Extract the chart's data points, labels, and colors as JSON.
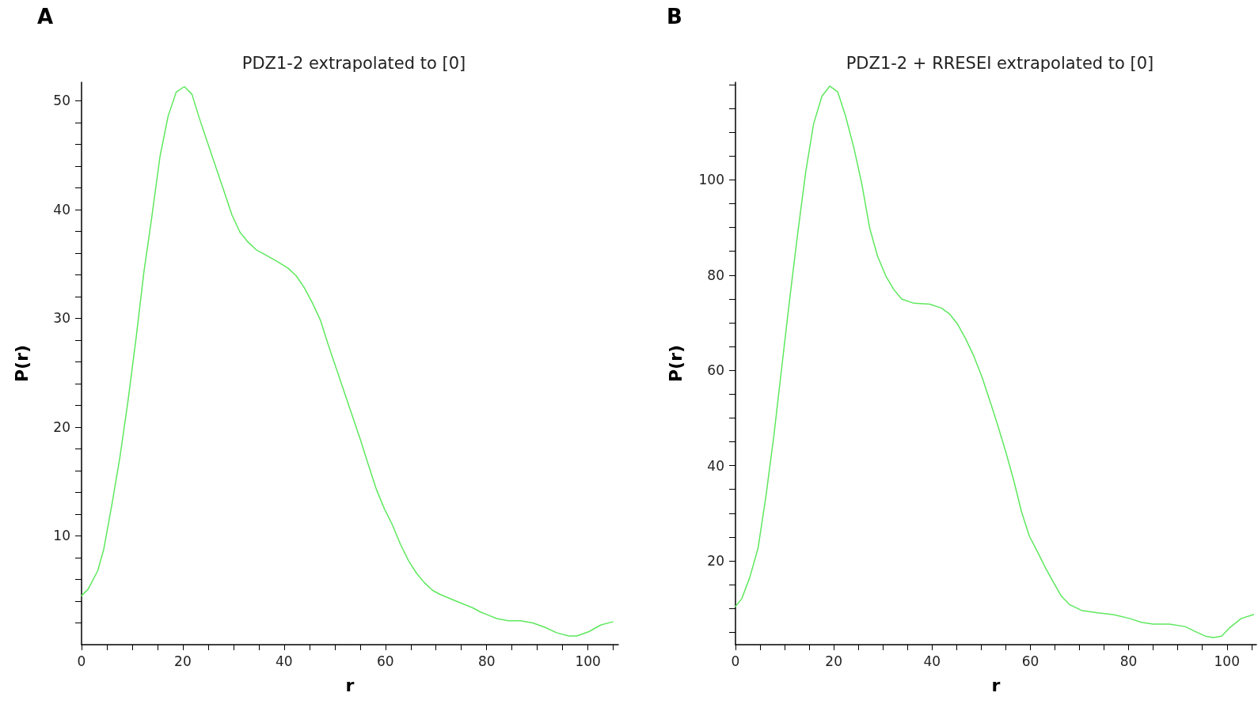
{
  "chart_data": [
    {
      "type": "line",
      "title": "PDZ1-2 extrapolated to [0]",
      "xlabel": "r",
      "ylabel": "P(r)",
      "annotations": [
        "A"
      ],
      "marker": "none",
      "line_style": "solid",
      "xlim": [
        0,
        106
      ],
      "ylim": [
        0,
        51.7
      ],
      "xticks": [
        0,
        {
          "value": 5,
          "label": null
        },
        {
          "value": 10,
          "label": null
        },
        {
          "value": 15,
          "label": null
        },
        20,
        {
          "value": 25,
          "label": null
        },
        {
          "value": 30,
          "label": null
        },
        {
          "value": 35,
          "label": null
        },
        40,
        {
          "value": 45,
          "label": null
        },
        {
          "value": 50,
          "label": null
        },
        {
          "value": 55,
          "label": null
        },
        60,
        {
          "value": 65,
          "label": null
        },
        {
          "value": 70,
          "label": null
        },
        {
          "value": 75,
          "label": null
        },
        80,
        {
          "value": 85,
          "label": null
        },
        {
          "value": 90,
          "label": null
        },
        {
          "value": 95,
          "label": null
        },
        100,
        {
          "value": 105,
          "label": null
        }
      ],
      "yticks": [
        {
          "value": 2,
          "label": null
        },
        {
          "value": 4,
          "label": null
        },
        {
          "value": 6,
          "label": null
        },
        {
          "value": 8,
          "label": null
        },
        10,
        {
          "value": 12,
          "label": null
        },
        {
          "value": 14,
          "label": null
        },
        {
          "value": 16,
          "label": null
        },
        {
          "value": 18,
          "label": null
        },
        20,
        {
          "value": 22,
          "label": null
        },
        {
          "value": 24,
          "label": null
        },
        {
          "value": 26,
          "label": null
        },
        {
          "value": 28,
          "label": null
        },
        30,
        {
          "value": 32,
          "label": null
        },
        {
          "value": 34,
          "label": null
        },
        {
          "value": 36,
          "label": null
        },
        {
          "value": 38,
          "label": null
        },
        40,
        {
          "value": 42,
          "label": null
        },
        {
          "value": 44,
          "label": null
        },
        {
          "value": 46,
          "label": null
        },
        {
          "value": 48,
          "label": null
        },
        50
      ],
      "x": [
        0,
        1.3,
        3.2,
        4.4,
        6,
        7.6,
        9.2,
        10.8,
        12.3,
        13.9,
        15.5,
        17.1,
        18.7,
        20.3,
        21.8,
        23.4,
        25,
        26.6,
        28.2,
        29.7,
        31.3,
        32.9,
        34.5,
        36.1,
        38.4,
        40.8,
        42.4,
        44,
        45.6,
        47.2,
        48.7,
        50.3,
        51.9,
        53.5,
        55.1,
        56.6,
        58.2,
        59.8,
        61.4,
        63,
        64.6,
        66.1,
        67.7,
        69.3,
        70.9,
        74,
        77.2,
        78.8,
        80.4,
        82,
        84.3,
        86.7,
        89.1,
        91.5,
        93.8,
        96.2,
        97.8,
        100.2,
        102.5,
        104.9
      ],
      "series": [
        {
          "color": "#5ee85e",
          "values": [
            4.5,
            5.1,
            6.8,
            8.8,
            12.9,
            17.3,
            22.5,
            28.3,
            34.2,
            39.4,
            44.9,
            48.6,
            50.8,
            51.3,
            50.6,
            48.2,
            46,
            43.8,
            41.6,
            39.5,
            37.9,
            37,
            36.3,
            35.9,
            35.3,
            34.6,
            33.9,
            32.8,
            31.4,
            29.8,
            27.6,
            25.4,
            23.2,
            21,
            18.8,
            16.6,
            14.3,
            12.5,
            11,
            9.2,
            7.7,
            6.6,
            5.7,
            5,
            4.6,
            4,
            3.4,
            3,
            2.7,
            2.4,
            2.2,
            2.2,
            2,
            1.6,
            1.1,
            0.8,
            0.8,
            1.2,
            1.8,
            2.1
          ]
        }
      ]
    },
    {
      "type": "line",
      "title": "PDZ1-2 + RRESEI extrapolated to [0]",
      "xlabel": "r",
      "ylabel": "P(r)",
      "annotations": [
        "B"
      ],
      "marker": "none",
      "line_style": "solid",
      "xlim": [
        0,
        106
      ],
      "ylim": [
        2.4,
        120.5
      ],
      "xticks": [
        0,
        {
          "value": 5,
          "label": null
        },
        {
          "value": 10,
          "label": null
        },
        {
          "value": 15,
          "label": null
        },
        20,
        {
          "value": 25,
          "label": null
        },
        {
          "value": 30,
          "label": null
        },
        {
          "value": 35,
          "label": null
        },
        40,
        {
          "value": 45,
          "label": null
        },
        {
          "value": 50,
          "label": null
        },
        {
          "value": 55,
          "label": null
        },
        60,
        {
          "value": 65,
          "label": null
        },
        {
          "value": 70,
          "label": null
        },
        {
          "value": 75,
          "label": null
        },
        80,
        {
          "value": 85,
          "label": null
        },
        {
          "value": 90,
          "label": null
        },
        {
          "value": 95,
          "label": null
        },
        100,
        {
          "value": 105,
          "label": null
        }
      ],
      "yticks": [
        {
          "value": 5,
          "label": null
        },
        {
          "value": 10,
          "label": null
        },
        {
          "value": 15,
          "label": null
        },
        20,
        {
          "value": 25,
          "label": null
        },
        {
          "value": 30,
          "label": null
        },
        {
          "value": 35,
          "label": null
        },
        40,
        {
          "value": 45,
          "label": null
        },
        {
          "value": 50,
          "label": null
        },
        {
          "value": 55,
          "label": null
        },
        60,
        {
          "value": 65,
          "label": null
        },
        {
          "value": 70,
          "label": null
        },
        {
          "value": 75,
          "label": null
        },
        80,
        {
          "value": 85,
          "label": null
        },
        {
          "value": 90,
          "label": null
        },
        {
          "value": 95,
          "label": null
        },
        100,
        {
          "value": 105,
          "label": null
        },
        {
          "value": 110,
          "label": null
        },
        {
          "value": 115,
          "label": null
        },
        {
          "value": 120,
          "label": null
        }
      ],
      "x": [
        0,
        1.3,
        2.9,
        4.6,
        6.2,
        7.8,
        9.4,
        11.1,
        12.7,
        14.3,
        15.9,
        17.6,
        19.2,
        20.8,
        22.4,
        24.1,
        25.7,
        27.3,
        28.9,
        30.6,
        32.2,
        33.8,
        36.3,
        39.5,
        41.9,
        43.6,
        45.2,
        46.8,
        48.5,
        50.1,
        51.7,
        53.3,
        55,
        56.6,
        58.2,
        59.8,
        61.5,
        63.1,
        64.7,
        66.3,
        68,
        70.4,
        73.7,
        76.9,
        80.2,
        82.6,
        85,
        88.3,
        91.5,
        93.9,
        95.6,
        97.2,
        98.9,
        100.5,
        102.9,
        105.4
      ],
      "series": [
        {
          "color": "#5ee85e",
          "values": [
            10.4,
            12.1,
            16.5,
            22.7,
            33.6,
            46.2,
            60.5,
            75.6,
            89.1,
            101.7,
            111.8,
            117.6,
            119.7,
            118.5,
            113.4,
            106.7,
            99.2,
            89.9,
            84,
            79.8,
            77,
            75,
            74.1,
            73.9,
            73.1,
            71.8,
            69.7,
            66.7,
            63,
            58.8,
            53.8,
            48.7,
            42.9,
            37,
            30.3,
            25.2,
            21.8,
            18.5,
            15.5,
            12.6,
            10.8,
            9.6,
            9.1,
            8.7,
            7.9,
            7.1,
            6.7,
            6.7,
            6.2,
            5,
            4.2,
            3.9,
            4.2,
            5.9,
            7.9,
            8.7
          ]
        }
      ]
    }
  ]
}
